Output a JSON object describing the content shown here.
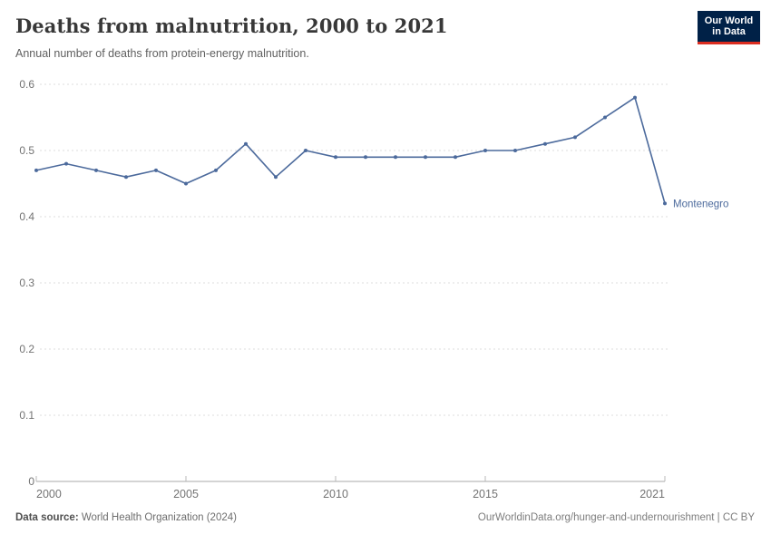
{
  "header": {
    "title": "Deaths from malnutrition, 2000 to 2021",
    "subtitle": "Annual number of deaths from protein-energy malnutrition."
  },
  "logo": {
    "line1": "Our World",
    "line2": "in Data"
  },
  "footer": {
    "source_label": "Data source:",
    "source_value": " World Health Organization (2024)",
    "citation": "OurWorldinData.org/hunger-and-undernourishment | CC BY"
  },
  "colors": {
    "series": "#4c6a9c",
    "gridline": "#dcdcdc",
    "axis": "#a8a8a8",
    "tick_label": "#737373",
    "logo_bg": "#002147",
    "logo_stripe": "#dc2d20"
  },
  "chart_data": {
    "type": "line",
    "title": "Deaths from malnutrition, 2000 to 2021",
    "subtitle": "Annual number of deaths from protein-energy malnutrition.",
    "xlabel": "",
    "ylabel": "",
    "x": [
      2000,
      2001,
      2002,
      2003,
      2004,
      2005,
      2006,
      2007,
      2008,
      2009,
      2010,
      2011,
      2012,
      2013,
      2014,
      2015,
      2016,
      2017,
      2018,
      2019,
      2020,
      2021
    ],
    "series": [
      {
        "name": "Montenegro",
        "values": [
          0.47,
          0.48,
          0.47,
          0.46,
          0.47,
          0.45,
          0.47,
          0.51,
          0.46,
          0.5,
          0.49,
          0.49,
          0.49,
          0.49,
          0.49,
          0.5,
          0.5,
          0.51,
          0.52,
          0.55,
          0.58,
          0.42
        ]
      }
    ],
    "ylim": [
      0,
      0.6
    ],
    "yticks": [
      0,
      0.1,
      0.2,
      0.3,
      0.4,
      0.5,
      0.6
    ],
    "xticks": [
      2000,
      2005,
      2010,
      2015,
      2021
    ],
    "grid": "horizontal-dashed",
    "legend_position": "end-of-line-label",
    "entity_label": "Montenegro"
  }
}
